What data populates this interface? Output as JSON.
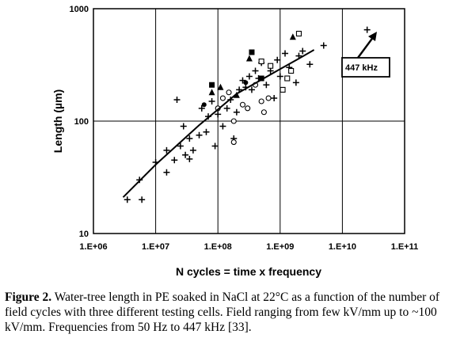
{
  "chart_data": {
    "type": "scatter",
    "xscale": "log",
    "yscale": "log",
    "xlim": [
      1000000,
      100000000000
    ],
    "ylim": [
      10,
      1000
    ],
    "xlabel": "N cycles = time x frequency",
    "ylabel": "Length (µm)",
    "x_ticks": [
      "1.E+06",
      "1.E+07",
      "1.E+08",
      "1.E+09",
      "1.E+10",
      "1.E+11"
    ],
    "y_ticks": [
      "10",
      "100",
      "1000"
    ],
    "grid": true,
    "annotation": "447 kHz",
    "series": [
      {
        "marker": "plus",
        "points": [
          [
            3500000.0,
            20
          ],
          [
            6000000.0,
            20
          ],
          [
            5500000.0,
            30
          ],
          [
            10000000.0,
            43
          ],
          [
            15000000.0,
            35
          ],
          [
            15000000.0,
            55
          ],
          [
            20000000.0,
            45
          ],
          [
            25000000.0,
            60
          ],
          [
            28000000.0,
            90
          ],
          [
            30000000.0,
            50
          ],
          [
            35000000.0,
            70
          ],
          [
            35000000.0,
            46
          ],
          [
            22000000.0,
            155
          ],
          [
            40000000.0,
            55
          ],
          [
            50000000.0,
            75
          ],
          [
            55000000.0,
            130
          ],
          [
            65000000.0,
            80
          ],
          [
            70000000.0,
            110
          ],
          [
            80000000.0,
            150
          ],
          [
            90000000.0,
            60
          ],
          [
            100000000.0,
            115
          ],
          [
            120000000.0,
            90
          ],
          [
            140000000.0,
            130
          ],
          [
            160000000.0,
            155
          ],
          [
            180000000.0,
            70
          ],
          [
            200000000.0,
            120
          ],
          [
            220000000.0,
            190
          ],
          [
            250000000.0,
            230
          ],
          [
            280000000.0,
            200
          ],
          [
            320000000.0,
            250
          ],
          [
            350000000.0,
            190
          ],
          [
            400000000.0,
            280
          ],
          [
            450000000.0,
            240
          ],
          [
            500000000.0,
            330
          ],
          [
            600000000.0,
            210
          ],
          [
            700000000.0,
            280
          ],
          [
            800000000.0,
            160
          ],
          [
            900000000.0,
            350
          ],
          [
            1000000000.0,
            250
          ],
          [
            1200000000.0,
            400
          ],
          [
            1400000000.0,
            300
          ],
          [
            1800000000.0,
            220
          ],
          [
            2000000000.0,
            380
          ],
          [
            2300000000.0,
            420
          ],
          [
            3000000000.0,
            320
          ],
          [
            5000000000.0,
            470
          ],
          [
            25000000000.0,
            650
          ]
        ]
      },
      {
        "marker": "open-circle",
        "points": [
          [
            100000000.0,
            130
          ],
          [
            120000000.0,
            160
          ],
          [
            150000000.0,
            180
          ],
          [
            180000000.0,
            100
          ],
          [
            180000000.0,
            65
          ],
          [
            250000000.0,
            140
          ],
          [
            300000000.0,
            130
          ],
          [
            400000000.0,
            210
          ],
          [
            500000000.0,
            150
          ],
          [
            550000000.0,
            120
          ],
          [
            650000000.0,
            160
          ]
        ]
      },
      {
        "marker": "open-square",
        "points": [
          [
            500000000.0,
            340
          ],
          [
            700000000.0,
            310
          ],
          [
            1100000000.0,
            190
          ],
          [
            1500000000.0,
            280
          ],
          [
            1300000000.0,
            240
          ],
          [
            2000000000.0,
            600
          ]
        ]
      },
      {
        "marker": "filled-square",
        "points": [
          [
            80000000.0,
            210
          ],
          [
            350000000.0,
            410
          ],
          [
            500000000.0,
            240
          ]
        ]
      },
      {
        "marker": "filled-triangle",
        "points": [
          [
            80000000.0,
            180
          ],
          [
            110000000.0,
            200
          ],
          [
            200000000.0,
            170
          ],
          [
            320000000.0,
            360
          ],
          [
            1600000000.0,
            560
          ]
        ]
      },
      {
        "marker": "filled-circle",
        "points": [
          [
            60000000.0,
            140
          ],
          [
            280000000.0,
            220
          ]
        ]
      },
      {
        "type": "line",
        "points": [
          [
            3000000.0,
            21
          ],
          [
            10000000.0,
            41
          ],
          [
            50000000.0,
            92
          ],
          [
            200000000.0,
            175
          ],
          [
            1000000000.0,
            290
          ],
          [
            2000000000.0,
            360
          ],
          [
            3500000000.0,
            430
          ]
        ]
      }
    ]
  },
  "caption": {
    "label": "Figure 2.",
    "text": " Water-tree length in PE soaked in NaCl at 22°C as a function of the number of field cycles with three different testing cells. Field ranging from few kV/mm up to ~100 kV/mm. Frequencies from 50 Hz to 447 kHz [33]."
  }
}
